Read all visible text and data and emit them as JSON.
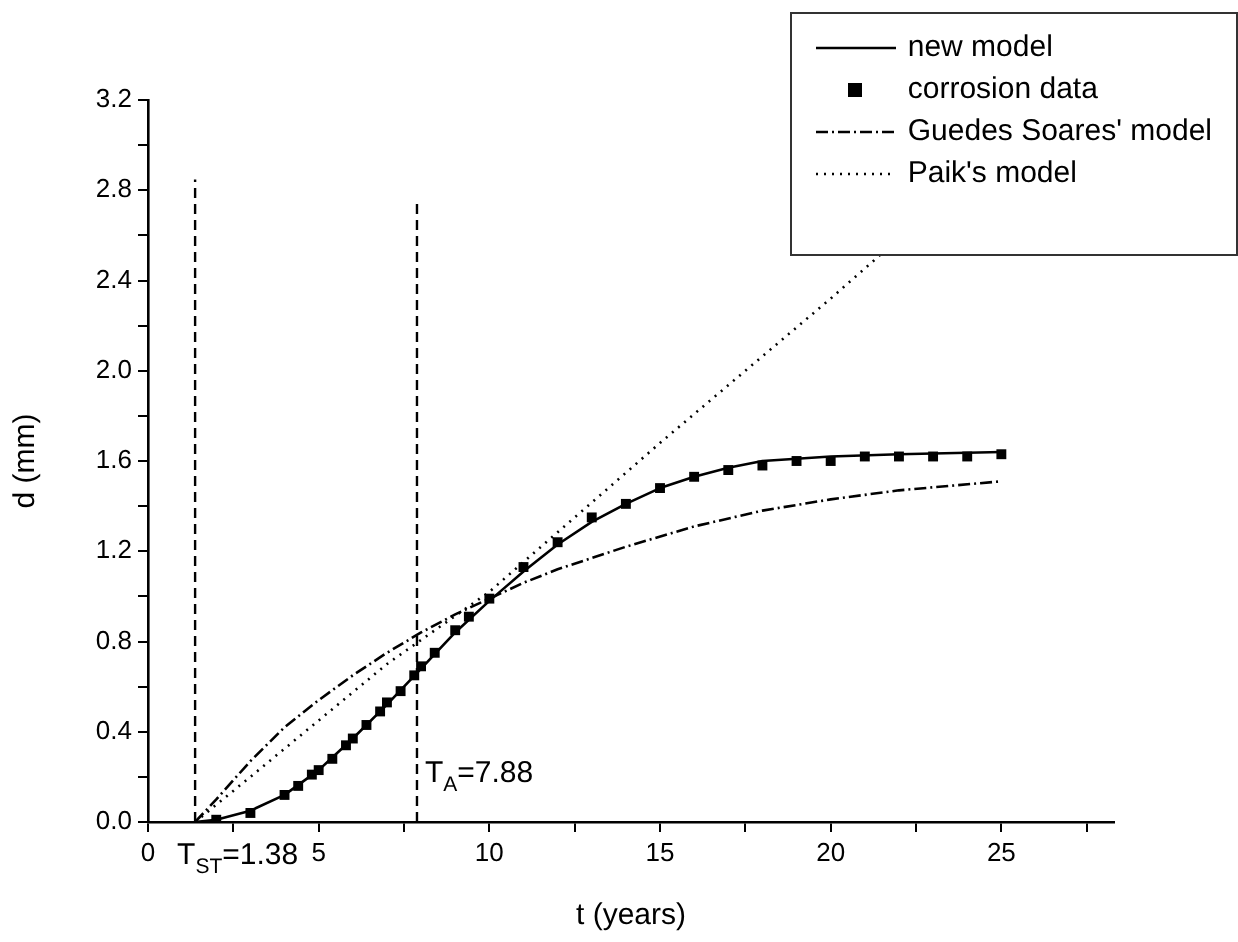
{
  "chart_data": {
    "type": "line",
    "xlabel": "t (years)",
    "ylabel": "d (mm)",
    "xlim": [
      0,
      28.3
    ],
    "xticks": [
      0,
      {
        "value": 2.5,
        "label": null
      },
      5,
      {
        "value": 7.5,
        "label": null
      },
      10,
      {
        "value": 12.5,
        "label": null
      },
      15,
      {
        "value": 17.5,
        "label": null
      },
      20,
      {
        "value": 22.5,
        "label": null
      },
      25,
      {
        "value": 27.5,
        "label": null
      }
    ],
    "ylim": [
      0,
      3.2
    ],
    "yticks": [
      {
        "value": 0,
        "label": "0.0"
      },
      {
        "value": 0.2,
        "label": null
      },
      0.4,
      {
        "value": 0.6,
        "label": null
      },
      0.8,
      {
        "value": 1.0,
        "label": null
      },
      1.2,
      {
        "value": 1.4,
        "label": null
      },
      1.6,
      {
        "value": 1.8,
        "label": null
      },
      {
        "value": 2,
        "label": "2.0"
      },
      {
        "value": 2.2,
        "label": null
      },
      2.4,
      {
        "value": 2.6,
        "label": null
      },
      2.8,
      {
        "value": 3.0,
        "label": null
      },
      3.2
    ],
    "grid": false,
    "legend": "top right",
    "series": [
      {
        "name": "new model",
        "color": "#000000",
        "line_style": "solid",
        "marker": "none",
        "x": [
          1.38,
          2,
          3,
          4,
          5,
          6,
          7,
          8,
          9,
          10,
          11,
          12,
          13,
          14,
          15,
          16,
          17,
          18,
          19,
          20,
          22,
          25
        ],
        "values": [
          0,
          0.01,
          0.05,
          0.12,
          0.23,
          0.37,
          0.52,
          0.68,
          0.84,
          0.98,
          1.11,
          1.23,
          1.33,
          1.41,
          1.48,
          1.53,
          1.57,
          1.6,
          1.61,
          1.62,
          1.63,
          1.64
        ]
      },
      {
        "name": "corrosion data",
        "type": "scatter",
        "color": "#000000",
        "marker": "square",
        "x": [
          2,
          3,
          4,
          4.4,
          4.8,
          5,
          5.4,
          5.8,
          6,
          6.4,
          6.8,
          7,
          7.4,
          7.8,
          8,
          8.4,
          9,
          9.4,
          10,
          11,
          12,
          13,
          14,
          15,
          16,
          17,
          18,
          19,
          20,
          21,
          22,
          23,
          24,
          25
        ],
        "values": [
          0.01,
          0.04,
          0.12,
          0.16,
          0.21,
          0.23,
          0.28,
          0.34,
          0.37,
          0.43,
          0.49,
          0.53,
          0.58,
          0.65,
          0.69,
          0.75,
          0.85,
          0.91,
          0.99,
          1.13,
          1.24,
          1.35,
          1.41,
          1.48,
          1.53,
          1.56,
          1.58,
          1.6,
          1.6,
          1.62,
          1.62,
          1.62,
          1.62,
          1.63
        ]
      },
      {
        "name": "Guedes Soares' model",
        "color": "#000000",
        "line_style": "dashed",
        "marker": "none",
        "x": [
          1.38,
          2,
          3,
          4,
          5,
          6,
          7,
          8,
          9,
          10,
          11,
          12,
          14,
          16,
          18,
          20,
          22,
          25
        ],
        "values": [
          0,
          0.1,
          0.27,
          0.42,
          0.54,
          0.65,
          0.75,
          0.84,
          0.92,
          0.99,
          1.06,
          1.12,
          1.22,
          1.31,
          1.38,
          1.43,
          1.47,
          1.51
        ]
      },
      {
        "name": "Paik's model",
        "color": "#000000",
        "line_style": "dotted",
        "marker": "none",
        "x": [
          1.38,
          3,
          5,
          7,
          10,
          15,
          20,
          21.5
        ],
        "values": [
          0,
          0.2,
          0.45,
          0.7,
          1.02,
          1.68,
          2.32,
          2.52
        ]
      }
    ],
    "ref_lines": [
      {
        "axis": "x",
        "value": 1.38,
        "label": "T$_{ST}$=1.38",
        "line_style": "dashed",
        "color": "#000000"
      },
      {
        "axis": "x",
        "value": 7.88,
        "label": "T$_{A}$=7.88",
        "line_style": "dashed",
        "color": "#000000"
      }
    ]
  }
}
